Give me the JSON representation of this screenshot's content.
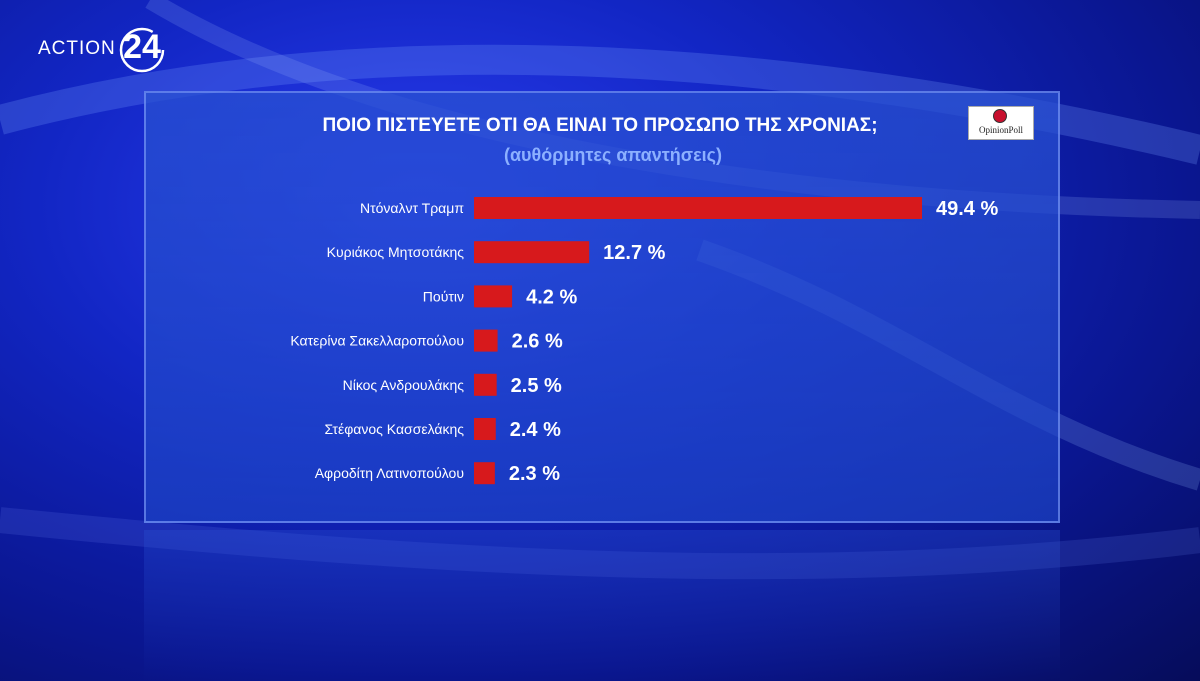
{
  "brand": {
    "logo_text": "ACTION",
    "logo_number": "24"
  },
  "source_logo": {
    "text": "OpinionPoll"
  },
  "colors": {
    "bar": "#d7191c",
    "label": "#ffffff",
    "subtitle": "#8cb0ff"
  },
  "chart_data": {
    "type": "bar",
    "orientation": "horizontal",
    "title": "ΠΟΙΟ ΠΙΣΤΕΥΕΤΕ ΟΤΙ ΘΑ ΕΙΝΑΙ ΤΟ ΠΡΟΣΩΠΟ ΤΗΣ ΧΡΟΝΙΑΣ;",
    "subtitle": "(αυθόρμητες απαντήσεις)",
    "categories": [
      "Ντόναλντ Τραμπ",
      "Κυριάκος Μητσοτάκης",
      "Πούτιν",
      "Κατερίνα Σακελλαροπούλου",
      "Νίκος Ανδρουλάκης",
      "Στέφανος Κασσελάκης",
      "Αφροδίτη Λατινοπούλου"
    ],
    "values": [
      49.4,
      12.7,
      4.2,
      2.6,
      2.5,
      2.4,
      2.3
    ],
    "value_labels": [
      "49.4 %",
      "12.7 %",
      "4.2 %",
      "2.6 %",
      "2.5 %",
      "2.4 %",
      "2.3 %"
    ],
    "grid": false,
    "legend": "none"
  }
}
